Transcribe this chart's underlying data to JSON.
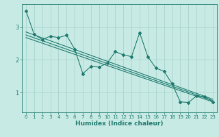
{
  "xlabel": "Humidex (Indice chaleur)",
  "ylabel": "",
  "bg_color": "#c8eae4",
  "grid_color": "#a8d4ce",
  "line_color": "#1e7a6e",
  "xlim": [
    -0.5,
    23.5
  ],
  "ylim": [
    0.4,
    3.7
  ],
  "xticks": [
    0,
    1,
    2,
    3,
    4,
    5,
    6,
    7,
    8,
    9,
    10,
    11,
    12,
    13,
    14,
    15,
    16,
    17,
    18,
    19,
    20,
    21,
    22,
    23
  ],
  "yticks": [
    1,
    2,
    3
  ],
  "data_x": [
    0,
    1,
    2,
    3,
    4,
    5,
    6,
    7,
    8,
    9,
    10,
    11,
    12,
    13,
    14,
    15,
    16,
    17,
    18,
    19,
    20,
    21,
    22,
    23
  ],
  "data_y": [
    3.5,
    2.78,
    2.62,
    2.72,
    2.68,
    2.75,
    2.33,
    1.58,
    1.8,
    1.78,
    1.9,
    2.25,
    2.15,
    2.1,
    2.83,
    2.1,
    1.75,
    1.65,
    1.27,
    0.72,
    0.7,
    0.9,
    0.88,
    0.72
  ],
  "trend1_x": [
    0,
    23
  ],
  "trend1_y": [
    2.85,
    0.8
  ],
  "trend2_x": [
    0,
    23
  ],
  "trend2_y": [
    2.68,
    0.72
  ],
  "trend3_x": [
    0,
    23
  ],
  "trend3_y": [
    2.76,
    0.76
  ]
}
